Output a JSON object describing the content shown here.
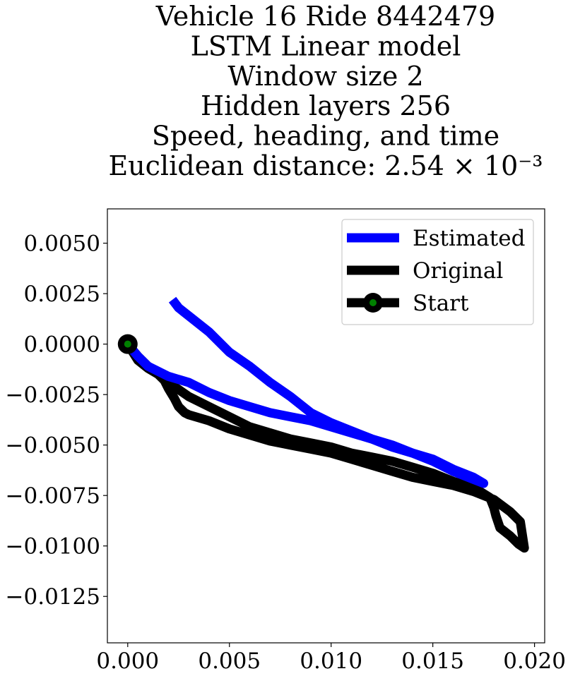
{
  "chart_data": {
    "type": "line",
    "title_lines": [
      "Vehicle 16 Ride 8442479",
      "LSTM Linear model",
      "Window size 2",
      "Hidden layers 256",
      "Speed, heading, and time",
      "Euclidean distance: 2.54 × 10⁻³"
    ],
    "xlabel": "",
    "ylabel": "",
    "xlim": [
      -0.001,
      0.0205
    ],
    "ylim": [
      -0.0148,
      0.0067
    ],
    "x_ticks": [
      {
        "value": 0.0,
        "label": "0.000"
      },
      {
        "value": 0.005,
        "label": "0.005"
      },
      {
        "value": 0.01,
        "label": "0.010"
      },
      {
        "value": 0.015,
        "label": "0.015"
      },
      {
        "value": 0.02,
        "label": "0.020"
      }
    ],
    "y_ticks": [
      {
        "value": 0.005,
        "label": "0.0050"
      },
      {
        "value": 0.0025,
        "label": "0.0025"
      },
      {
        "value": 0.0,
        "label": "0.0000"
      },
      {
        "value": -0.0025,
        "label": "−0.0025"
      },
      {
        "value": -0.005,
        "label": "−0.0050"
      },
      {
        "value": -0.0075,
        "label": "−0.0075"
      },
      {
        "value": -0.01,
        "label": "−0.0100"
      },
      {
        "value": -0.0125,
        "label": "−0.0125"
      }
    ],
    "grid": false,
    "legend_position": "top-right",
    "series": [
      {
        "name": "Original",
        "color": "#000000",
        "x": [
          0.0,
          0.0005,
          0.001,
          0.0015,
          0.0018,
          0.002,
          0.0023,
          0.0025,
          0.0028,
          0.003,
          0.004,
          0.005,
          0.006,
          0.007,
          0.008,
          0.009,
          0.0095,
          0.01,
          0.011,
          0.012,
          0.013,
          0.014,
          0.015,
          0.016,
          0.017,
          0.018,
          0.0188,
          0.0193,
          0.0195,
          0.0192,
          0.0188,
          0.0183,
          0.0181,
          0.018,
          0.0178,
          0.017,
          0.016,
          0.015,
          0.014,
          0.013,
          0.012,
          0.011,
          0.01,
          0.009,
          0.008,
          0.007,
          0.006,
          0.005,
          0.004,
          0.003,
          0.002,
          0.0015,
          0.001,
          0.0005,
          0.0
        ],
        "y": [
          0.0,
          -0.0008,
          -0.0012,
          -0.0015,
          -0.0018,
          -0.0022,
          -0.0027,
          -0.0031,
          -0.0034,
          -0.0035,
          -0.0038,
          -0.0042,
          -0.0045,
          -0.0048,
          -0.005,
          -0.0052,
          -0.0053,
          -0.0054,
          -0.0057,
          -0.006,
          -0.0063,
          -0.0066,
          -0.0068,
          -0.007,
          -0.0073,
          -0.0077,
          -0.0083,
          -0.0088,
          -0.0101,
          -0.0099,
          -0.0095,
          -0.0091,
          -0.0085,
          -0.0081,
          -0.0076,
          -0.0071,
          -0.0068,
          -0.0064,
          -0.0061,
          -0.0058,
          -0.0056,
          -0.0054,
          -0.0051,
          -0.0049,
          -0.0047,
          -0.0044,
          -0.0041,
          -0.0036,
          -0.0031,
          -0.0026,
          -0.0019,
          -0.0014,
          -0.0011,
          -0.0006,
          0.0
        ]
      },
      {
        "name": "Estimated",
        "color": "#0000ff",
        "x": [
          0.0022,
          0.0025,
          0.003,
          0.004,
          0.005,
          0.006,
          0.007,
          0.008,
          0.009,
          0.01,
          0.011,
          0.012,
          0.013,
          0.014,
          0.015,
          0.016,
          0.017,
          0.0175,
          0.017,
          0.016,
          0.015,
          0.014,
          0.013,
          0.012,
          0.011,
          0.01,
          0.009,
          0.008,
          0.007,
          0.006,
          0.005,
          0.004,
          0.003,
          0.002,
          0.001,
          0.0005,
          0.0
        ],
        "y": [
          0.0022,
          0.0018,
          0.0014,
          0.0006,
          -0.0004,
          -0.0011,
          -0.0019,
          -0.0026,
          -0.0034,
          -0.0039,
          -0.0043,
          -0.0047,
          -0.0051,
          -0.0054,
          -0.0058,
          -0.0063,
          -0.0067,
          -0.0069,
          -0.0066,
          -0.0062,
          -0.0057,
          -0.0054,
          -0.005,
          -0.0047,
          -0.0044,
          -0.0041,
          -0.0038,
          -0.0036,
          -0.0034,
          -0.0031,
          -0.0028,
          -0.0024,
          -0.0019,
          -0.0016,
          -0.0011,
          -0.0006,
          0.0
        ]
      }
    ],
    "start_marker": {
      "name": "Start",
      "x": 0.0,
      "y": 0.0,
      "face_color": "#008000",
      "edge_color": "#000000"
    },
    "legend_entries": [
      "Estimated",
      "Original",
      "Start"
    ]
  }
}
